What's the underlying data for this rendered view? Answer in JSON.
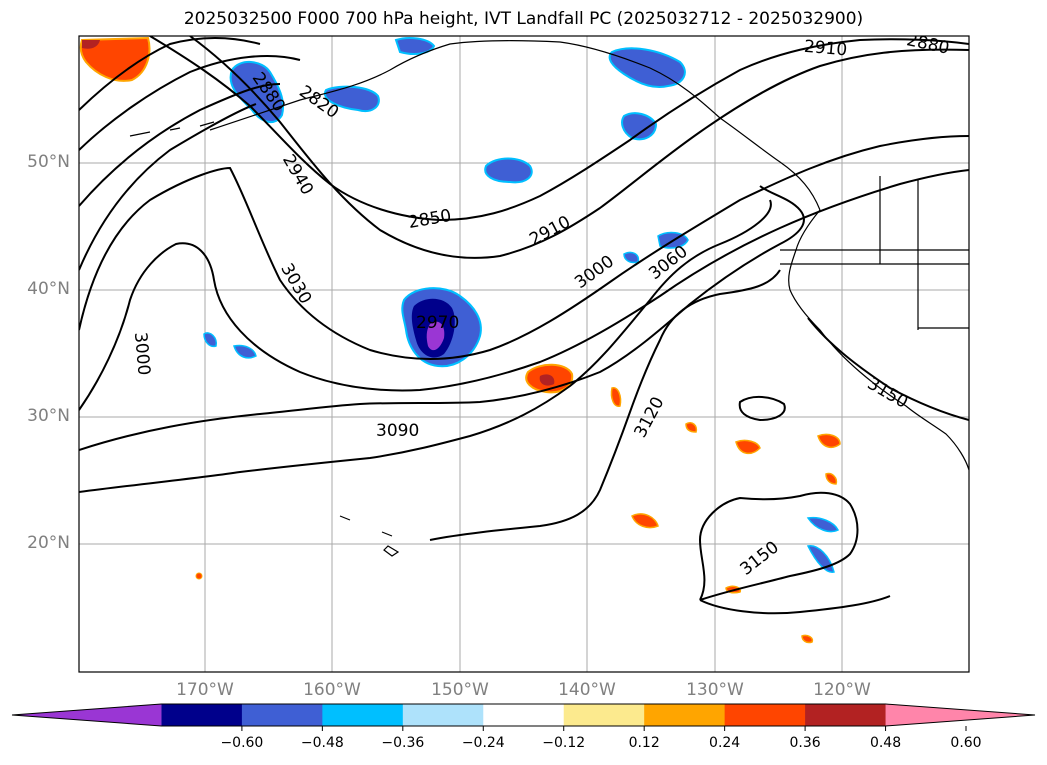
{
  "title": "2025032500 F000 700 hPa height, IVT Landfall PC (2025032712 - 2025032900)",
  "map": {
    "lat_ticks": [
      "50°N",
      "40°N",
      "30°N",
      "20°N"
    ],
    "lon_ticks": [
      "170°W",
      "160°W",
      "150°W",
      "140°W",
      "130°W",
      "120°W"
    ],
    "contour_labels": [
      "2910",
      "2880",
      "2880",
      "2820",
      "2940",
      "2850",
      "2910",
      "3000",
      "3060",
      "3030",
      "2970",
      "3000",
      "3090",
      "3120",
      "3150",
      "3150"
    ],
    "gridline_color": "#aaaaaa",
    "contour_color": "#000000"
  },
  "colorbar": {
    "tick_labels": [
      "−0.60",
      "−0.48",
      "−0.36",
      "−0.24",
      "−0.12",
      "0.12",
      "0.24",
      "0.36",
      "0.48",
      "0.60"
    ],
    "colors": [
      "#9a36d4",
      "#00008b",
      "#3f5fd4",
      "#00bfff",
      "#aee2fb",
      "#ffffff",
      "#fcea8e",
      "#ffa500",
      "#ff4500",
      "#b22222",
      "#ff85aa"
    ]
  }
}
